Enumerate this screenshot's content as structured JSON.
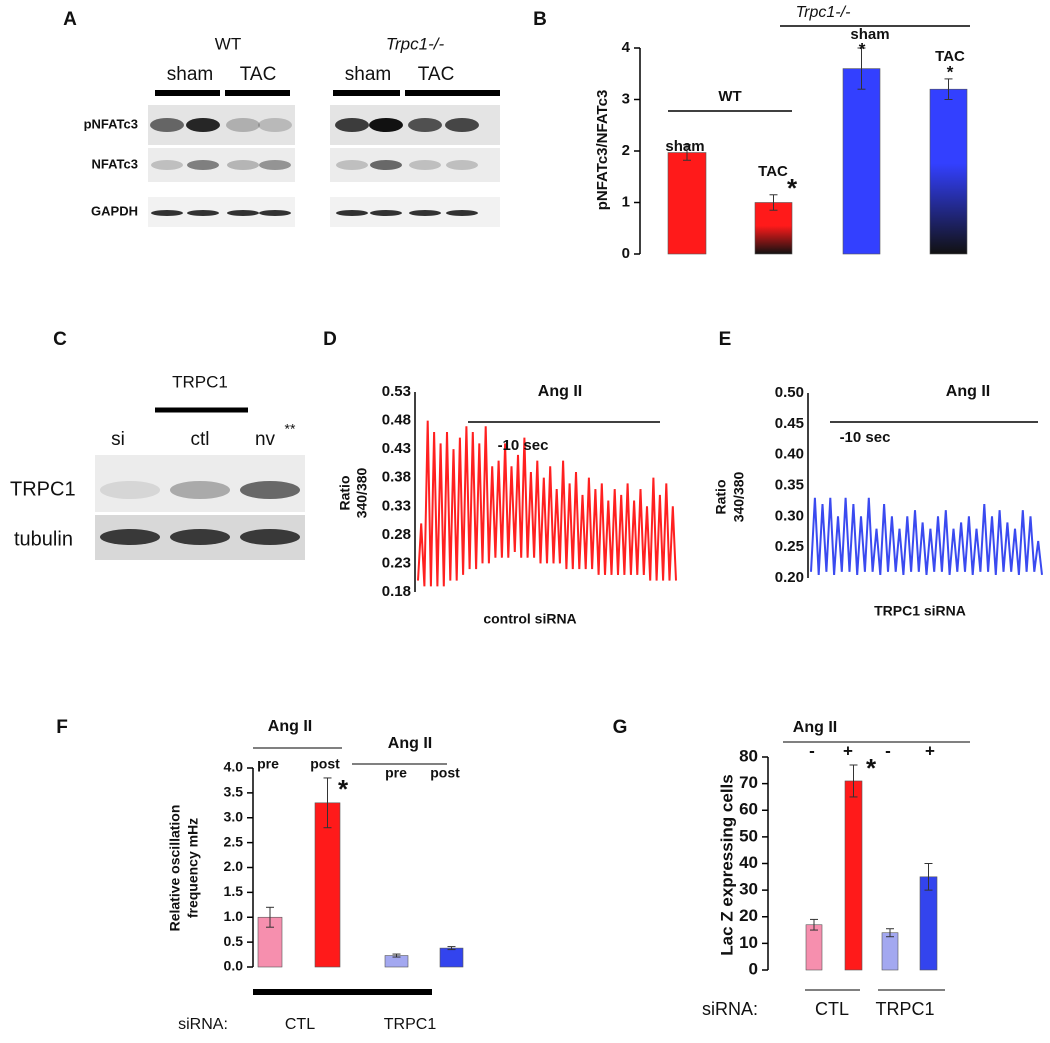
{
  "panel_labels": [
    "A",
    "B",
    "C",
    "D",
    "E",
    "F",
    "G"
  ],
  "blots": {
    "A": {
      "groups": [
        "WT",
        "Trpc1-/-"
      ],
      "lanes": [
        "sham",
        "TAC",
        "sham",
        "TAC"
      ],
      "rows": [
        "pNFATc3",
        "NFATc3",
        "GAPDH"
      ]
    },
    "C": {
      "header": "TRPC1",
      "lanes": [
        "si",
        "ctl",
        "nv"
      ],
      "note": "**",
      "rows": [
        "TRPC1",
        "tubulin"
      ]
    }
  },
  "chart_data": [
    {
      "type": "bar",
      "y_label": "pNFATc3/NFATc3",
      "ylim": [
        0,
        4
      ],
      "yticks": [
        0,
        1,
        2,
        3,
        4
      ],
      "values": [
        1.97,
        1.0,
        3.6,
        3.2
      ],
      "errors": [
        0.15,
        0.15,
        0.4,
        0.2
      ],
      "bar_labels": [
        "sham",
        "TAC",
        "sham",
        "TAC"
      ],
      "significance": [
        null,
        "*",
        "*",
        "*"
      ],
      "groups": [
        "WT",
        "Trpc1-/-"
      ],
      "colors": [
        "#ff1a1a",
        "#ff1a1a",
        "#3340ff",
        "#3340ff"
      ],
      "gradient": [
        false,
        true,
        false,
        true
      ]
    },
    {
      "type": "line",
      "treatment": "Ang II",
      "time_label": "-10 sec",
      "y_label": [
        "Ratio",
        "340/380"
      ],
      "x_label": "control siRNA",
      "color": "#ff2020",
      "ylim": [
        0.18,
        0.53
      ],
      "yticks": [
        0.18,
        0.23,
        0.28,
        0.33,
        0.38,
        0.43,
        0.48,
        0.53
      ],
      "values": [
        0.2,
        0.3,
        0.19,
        0.48,
        0.19,
        0.46,
        0.19,
        0.44,
        0.19,
        0.46,
        0.2,
        0.43,
        0.2,
        0.45,
        0.21,
        0.47,
        0.22,
        0.46,
        0.22,
        0.44,
        0.23,
        0.47,
        0.23,
        0.4,
        0.24,
        0.41,
        0.24,
        0.44,
        0.24,
        0.4,
        0.25,
        0.42,
        0.24,
        0.45,
        0.24,
        0.39,
        0.24,
        0.41,
        0.23,
        0.38,
        0.23,
        0.4,
        0.23,
        0.36,
        0.23,
        0.41,
        0.22,
        0.37,
        0.22,
        0.39,
        0.22,
        0.35,
        0.22,
        0.38,
        0.22,
        0.36,
        0.21,
        0.37,
        0.21,
        0.34,
        0.21,
        0.36,
        0.21,
        0.35,
        0.21,
        0.37,
        0.21,
        0.34,
        0.21,
        0.36,
        0.21,
        0.33,
        0.2,
        0.38,
        0.2,
        0.35,
        0.2,
        0.37,
        0.2,
        0.33,
        0.2
      ]
    },
    {
      "type": "line",
      "treatment": "Ang II",
      "time_label": "-10 sec",
      "y_label": [
        "Ratio",
        "340/380"
      ],
      "x_label": "TRPC1 siRNA",
      "color": "#3a4af0",
      "ylim": [
        0.2,
        0.5
      ],
      "yticks": [
        {
          "value": 0.2,
          "label": "0.20"
        },
        0.25,
        {
          "value": 0.3,
          "label": "0.30"
        },
        0.35,
        {
          "value": 0.4,
          "label": "0.40"
        },
        0.45,
        {
          "value": 0.5,
          "label": "0.50"
        }
      ],
      "values": [
        0.21,
        0.33,
        0.205,
        0.32,
        0.21,
        0.33,
        0.205,
        0.3,
        0.21,
        0.33,
        0.21,
        0.32,
        0.205,
        0.3,
        0.21,
        0.33,
        0.21,
        0.28,
        0.205,
        0.32,
        0.21,
        0.3,
        0.21,
        0.28,
        0.205,
        0.3,
        0.21,
        0.31,
        0.21,
        0.29,
        0.205,
        0.28,
        0.21,
        0.3,
        0.21,
        0.31,
        0.205,
        0.28,
        0.21,
        0.29,
        0.21,
        0.3,
        0.205,
        0.28,
        0.21,
        0.32,
        0.21,
        0.3,
        0.205,
        0.31,
        0.21,
        0.29,
        0.21,
        0.28,
        0.205,
        0.31,
        0.21,
        0.3,
        0.21,
        0.26,
        0.205
      ]
    },
    {
      "type": "bar",
      "y_label": [
        "Relative oscillation",
        "frequency mHz"
      ],
      "ylim": [
        0,
        4
      ],
      "yticks": [
        {
          "value": 0,
          "label": "0.0"
        },
        0.5,
        {
          "value": 1,
          "label": "1.0"
        },
        1.5,
        {
          "value": 2,
          "label": "2.0"
        },
        2.5,
        {
          "value": 3,
          "label": "3.0"
        },
        3.5,
        {
          "value": 4,
          "label": "4.0"
        }
      ],
      "values": [
        1.0,
        3.3,
        0.23,
        0.38
      ],
      "errors": [
        0.2,
        0.5,
        0.03,
        0.03
      ],
      "group_headers": [
        "Ang II",
        "Ang II"
      ],
      "bar_labels": [
        "pre",
        "post",
        "pre",
        "post"
      ],
      "significance": [
        null,
        "*",
        null,
        null
      ],
      "sirna_label": "siRNA:",
      "groups": [
        "CTL",
        "TRPC1"
      ],
      "colors": [
        "#f68fae",
        "#ff1a1a",
        "#a3a8f0",
        "#3344ee"
      ]
    },
    {
      "type": "bar",
      "y_label": "Lac Z expressing cells",
      "ylim": [
        0,
        80
      ],
      "yticks": [
        0,
        10,
        20,
        30,
        40,
        50,
        60,
        70,
        80
      ],
      "values": [
        17,
        71,
        14,
        35
      ],
      "errors": [
        2,
        6,
        1.5,
        5
      ],
      "group_headers": [
        "Ang II"
      ],
      "bar_labels": [
        "-",
        "+",
        "-",
        "+"
      ],
      "significance": [
        null,
        "*",
        null,
        null
      ],
      "sirna_label": "siRNA:",
      "groups": [
        "CTL",
        "TRPC1"
      ],
      "colors": [
        "#f68fae",
        "#ff1a1a",
        "#a3a8f0",
        "#3344ee"
      ]
    }
  ]
}
